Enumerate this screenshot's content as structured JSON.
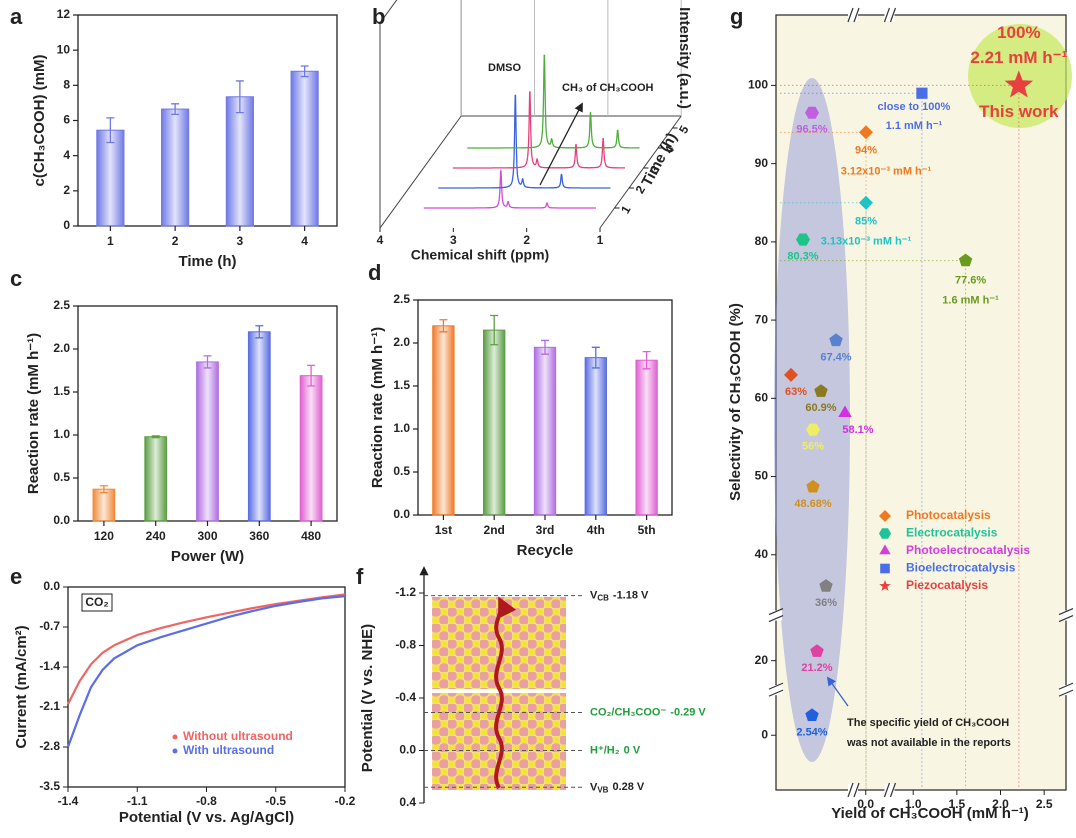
{
  "chart_data": [
    {
      "panel_label": "a",
      "type": "bar",
      "ylabel": "c(CH₃COOH) (mM)",
      "xlabel": "Time (h)",
      "categories": [
        "1",
        "2",
        "3",
        "4"
      ],
      "values": [
        5.45,
        6.65,
        7.35,
        8.8
      ],
      "errors": [
        0.7,
        0.3,
        0.9,
        0.3
      ],
      "colors": [
        "#6f78e6",
        "#6f78e6",
        "#6f78e6",
        "#6f78e6"
      ],
      "ylim": [
        0,
        12
      ],
      "yticks": [
        0,
        2,
        4,
        6,
        8,
        10,
        12
      ]
    },
    {
      "panel_label": "b",
      "type": "spectra3d",
      "xlabel": "Chemical shift (ppm)",
      "ylabel": "Time (h)",
      "zlabel": "Intensity (a.u.)",
      "xlim": [
        4,
        1
      ],
      "xticks": [
        4,
        3,
        2,
        1
      ],
      "yticks": [
        1,
        2,
        3,
        4,
        5
      ],
      "colors": [
        "#d24ad8",
        "#3a62e0",
        "#e5407e",
        "#4fae3c"
      ],
      "annotations": [
        "DMSO",
        "CH₃ of CH₃COOH"
      ]
    },
    {
      "panel_label": "c",
      "type": "bar",
      "ylabel": "Reaction rate (mM h⁻¹)",
      "xlabel": "Power (W)",
      "categories": [
        "120",
        "240",
        "300",
        "360",
        "480"
      ],
      "values": [
        0.37,
        0.98,
        1.85,
        2.2,
        1.69
      ],
      "errors": [
        0.04,
        0.01,
        0.07,
        0.07,
        0.12
      ],
      "colors": [
        "#f08a3a",
        "#5c9e44",
        "#b06ee2",
        "#5a6ee2",
        "#e060d2"
      ],
      "ylim": [
        0,
        2.5
      ],
      "yticks": [
        {
          "value": 0,
          "label": "0.0"
        },
        0.5,
        {
          "value": 1,
          "label": "1.0"
        },
        1.5,
        {
          "value": 2,
          "label": "2.0"
        },
        2.5
      ]
    },
    {
      "panel_label": "d",
      "type": "bar",
      "ylabel": "Reaction rate (mM h⁻¹)",
      "xlabel": "Recycle",
      "categories": [
        "1st",
        "2nd",
        "3rd",
        "4th",
        "5th"
      ],
      "values": [
        2.2,
        2.15,
        1.95,
        1.83,
        1.8
      ],
      "errors": [
        0.07,
        0.17,
        0.08,
        0.12,
        0.1
      ],
      "colors": [
        "#f07a2a",
        "#5c9e44",
        "#b06ee2",
        "#5a6ee2",
        "#e060d2"
      ],
      "ylim": [
        0,
        2.5
      ],
      "yticks": [
        {
          "value": 0,
          "label": "0.0"
        },
        0.5,
        {
          "value": 1,
          "label": "1.0"
        },
        1.5,
        {
          "value": 2,
          "label": "2.0"
        },
        2.5
      ]
    },
    {
      "panel_label": "e",
      "type": "line",
      "ylabel": "Current (mA/cm²)",
      "xlabel": "Potential (V vs. Ag/AgCl)",
      "annotation": "CO₂",
      "x": [
        -1.4,
        -1.35,
        -1.3,
        -1.25,
        -1.2,
        -1.1,
        -1.0,
        -0.9,
        -0.8,
        -0.7,
        -0.6,
        -0.5,
        -0.4,
        -0.3,
        -0.2
      ],
      "series": [
        {
          "name": "Without ultrasound",
          "color": "#f06464",
          "values": [
            -2.05,
            -1.65,
            -1.35,
            -1.15,
            -1.02,
            -0.84,
            -0.72,
            -0.62,
            -0.53,
            -0.45,
            -0.37,
            -0.3,
            -0.24,
            -0.18,
            -0.13
          ]
        },
        {
          "name": "With ultrasound",
          "color": "#5a6ee6",
          "values": [
            -2.8,
            -2.25,
            -1.75,
            -1.45,
            -1.25,
            -1.02,
            -0.88,
            -0.76,
            -0.64,
            -0.52,
            -0.42,
            -0.33,
            -0.26,
            -0.2,
            -0.16
          ]
        }
      ],
      "legend": "lower right",
      "xlim": [
        -1.4,
        -0.2
      ],
      "xticks": [
        -1.4,
        -1.1,
        -0.8,
        -0.5,
        -0.2
      ],
      "ylim": [
        -3.5,
        0
      ],
      "yticks": [
        {
          "value": 0,
          "label": "0.0"
        },
        -0.7,
        -1.4,
        -2.1,
        -2.8,
        -3.5
      ]
    },
    {
      "panel_label": "f",
      "type": "levels",
      "ylabel": "Potential (V vs. NHE)",
      "ylim": [
        0.4,
        -1.2
      ],
      "yticks": [
        -1.2,
        -0.8,
        -0.4,
        {
          "value": 0,
          "label": "0.0"
        },
        0.4
      ],
      "levels": [
        {
          "symbol": "V",
          "sub": "CB",
          "value": -1.18,
          "value_label": "-1.18 V",
          "color": "#222222"
        },
        {
          "name": "CO₂/CH₃COO⁻",
          "value": -0.29,
          "value_label": "-0.29 V",
          "color": "#1f9e3c"
        },
        {
          "name": "H⁺/H₂",
          "value": 0,
          "value_label": "0 V",
          "color": "#1f9e3c"
        },
        {
          "symbol": "V",
          "sub": "VB",
          "value": 0.28,
          "value_label": "0.28 V",
          "color": "#222222"
        }
      ]
    },
    {
      "panel_label": "g",
      "type": "scatter",
      "xlabel": "Yield of CH₃COOH (mM h⁻¹)",
      "ylabel": "Selectivity of CH₃COOH (%)",
      "xlim": [
        -0.1,
        2.75
      ],
      "xbreaks": [
        [
          0.1,
          0.9
        ]
      ],
      "xticks": [
        {
          "value": 0,
          "label": "0.0"
        },
        {
          "value": 1,
          "label": "1.0"
        },
        1.5,
        {
          "value": 2,
          "label": "2.0"
        },
        2.5
      ],
      "ylim": [
        -7,
        109
      ],
      "ybreaks": [
        [
          5,
          17
        ],
        [
          25,
          33
        ]
      ],
      "yticks": [
        0,
        20,
        40,
        50,
        60,
        70,
        80,
        90,
        100
      ],
      "groups": [
        {
          "name": "Photocatalysis",
          "color": "#f07820",
          "marker": "diamond"
        },
        {
          "name": "Electrocatalysis",
          "color": "#1fc39a",
          "marker": "hexagon"
        },
        {
          "name": "Photoelectrocatalysis",
          "color": "#d23ee0",
          "marker": "triangle"
        },
        {
          "name": "Bioelectrocatalysis",
          "color": "#4a6ee8",
          "marker": "square"
        },
        {
          "name": "Piezocatalysis",
          "color": "#e84040",
          "marker": "star"
        }
      ],
      "points": [
        {
          "x": 2.21,
          "y": 100,
          "marker": "star",
          "color": "#e84040",
          "labels": [
            "100%",
            "2.21 mM h⁻¹",
            "This work"
          ]
        },
        {
          "x": 1.1,
          "y": 99,
          "marker": "square",
          "color": "#4a6ee8",
          "labels": [
            "close to 100%",
            "1.1 mM h⁻¹"
          ]
        },
        {
          "x": 0.00312,
          "y": 94,
          "marker": "diamond",
          "color": "#f07820",
          "labels": [
            "94%",
            "3.12x10⁻³ mM h⁻¹"
          ]
        },
        {
          "x": 0.00313,
          "y": 85,
          "marker": "diamond",
          "color": "#1fc3c3",
          "labels": [
            "85%",
            "3.13x10⁻³ mM h⁻¹"
          ]
        },
        {
          "x": 1.6,
          "y": 77.6,
          "marker": "pentagon",
          "color": "#6a9a1e",
          "labels": [
            "77.6%",
            "1.6 mM h⁻¹"
          ]
        },
        {
          "x": null,
          "y": 96.5,
          "marker": "hexagon",
          "color": "#c060e0",
          "labels": [
            "96.5%"
          ]
        },
        {
          "x": null,
          "y": 80.3,
          "marker": "hexagon",
          "color": "#1fc38a",
          "labels": [
            "80.3%"
          ]
        },
        {
          "x": null,
          "y": 67.4,
          "marker": "pentagon",
          "color": "#5a80d0",
          "labels": [
            "67.4%"
          ]
        },
        {
          "x": null,
          "y": 63,
          "marker": "diamond",
          "color": "#e05020",
          "labels": [
            "63%"
          ]
        },
        {
          "x": null,
          "y": 60.9,
          "marker": "pentagon",
          "color": "#8a7a20",
          "labels": [
            "60.9%"
          ]
        },
        {
          "x": null,
          "y": 58.1,
          "marker": "triangle",
          "color": "#d030e0",
          "labels": [
            "58.1%"
          ]
        },
        {
          "x": null,
          "y": 56,
          "marker": "hexagon",
          "color": "#eeee66",
          "labels": [
            "56%"
          ]
        },
        {
          "x": null,
          "y": 48.68,
          "marker": "pentagon",
          "color": "#d09020",
          "labels": [
            "48.68%"
          ]
        },
        {
          "x": null,
          "y": 36,
          "marker": "pentagon",
          "color": "#808080",
          "labels": [
            "36%"
          ]
        },
        {
          "x": null,
          "y": 21.2,
          "marker": "pentagon",
          "color": "#e040a0",
          "labels": [
            "21.2%"
          ]
        },
        {
          "x": null,
          "y": 2.54,
          "marker": "pentagon",
          "color": "#2060e0",
          "labels": [
            "2.54%"
          ]
        }
      ],
      "annotation": [
        "The specific yield of CH₃COOH",
        "was not available in the reports"
      ]
    }
  ]
}
